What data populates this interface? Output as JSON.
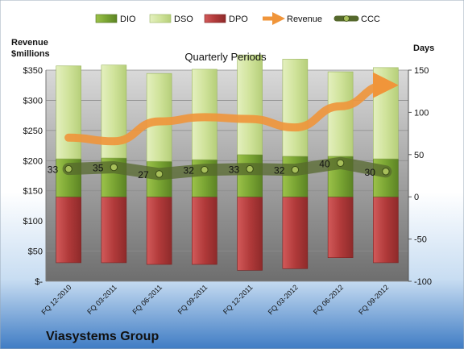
{
  "company": "Viasystems Group",
  "chart_data": {
    "type": "bar",
    "title": "Quarterly Periods",
    "left_axis_label": [
      "Revenue",
      "$millions"
    ],
    "right_axis_label": "Days",
    "categories": [
      "FQ 12-2010",
      "FQ 03-2011",
      "FQ 06-2011",
      "FQ 09-2011",
      "FQ 12-2011",
      "FQ 03-2012",
      "FQ 06-2012",
      "FQ 09-2012"
    ],
    "left_axis": {
      "min": 0,
      "max": 350,
      "step": 50,
      "tick_labels": [
        "$-",
        "$50",
        "$100",
        "$150",
        "$200",
        "$250",
        "$300",
        "$350"
      ]
    },
    "right_axis": {
      "min": -100,
      "max": 150,
      "step": 50,
      "tick_labels": [
        "-100",
        "-50",
        "0",
        "50",
        "100",
        "150"
      ]
    },
    "legend_position": "top",
    "series": [
      {
        "name": "DIO",
        "axis": "right",
        "kind": "bar",
        "color": "#6f9a2a",
        "values": [
          45,
          46,
          42,
          44,
          50,
          48,
          48,
          45
        ]
      },
      {
        "name": "DSO",
        "axis": "right",
        "kind": "bar",
        "color": "#c9dd8f",
        "values": [
          110,
          110,
          104,
          107,
          118,
          115,
          100,
          108
        ]
      },
      {
        "name": "DPO",
        "axis": "right",
        "kind": "bar",
        "color": "#b13a3a",
        "values": [
          -78,
          -78,
          -80,
          -80,
          -87,
          -85,
          -72,
          -78
        ]
      },
      {
        "name": "Revenue",
        "axis": "left",
        "kind": "line",
        "color": "#f0953a",
        "values": [
          238,
          232,
          265,
          272,
          269,
          255,
          290,
          325
        ]
      },
      {
        "name": "CCC",
        "axis": "right",
        "kind": "line",
        "color": "#556b2f",
        "values": [
          33,
          35,
          27,
          32,
          33,
          32,
          40,
          30
        ],
        "labels": [
          "33",
          "35",
          "27",
          "32",
          "33",
          "32",
          "40",
          "30"
        ]
      }
    ]
  }
}
